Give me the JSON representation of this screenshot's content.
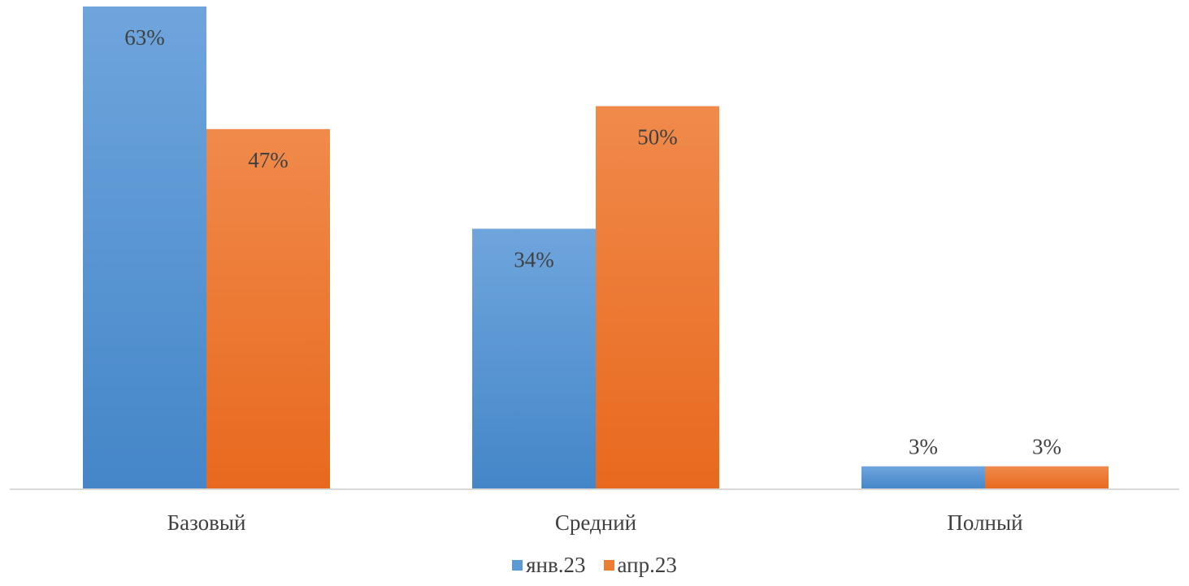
{
  "chart_data": {
    "type": "bar",
    "categories": [
      "Базовый",
      "Средний",
      "Полный"
    ],
    "series": [
      {
        "name": "янв.23",
        "values": [
          63,
          34,
          3
        ],
        "labels": [
          "63%",
          "34%",
          "3%"
        ],
        "color": "#5B9BD5"
      },
      {
        "name": "апр.23",
        "values": [
          47,
          50,
          3
        ],
        "labels": [
          "47%",
          "50%",
          "3%"
        ],
        "color": "#ED7D31"
      }
    ],
    "ylim": [
      0,
      63
    ],
    "grid": false,
    "legend_position": "bottom"
  }
}
